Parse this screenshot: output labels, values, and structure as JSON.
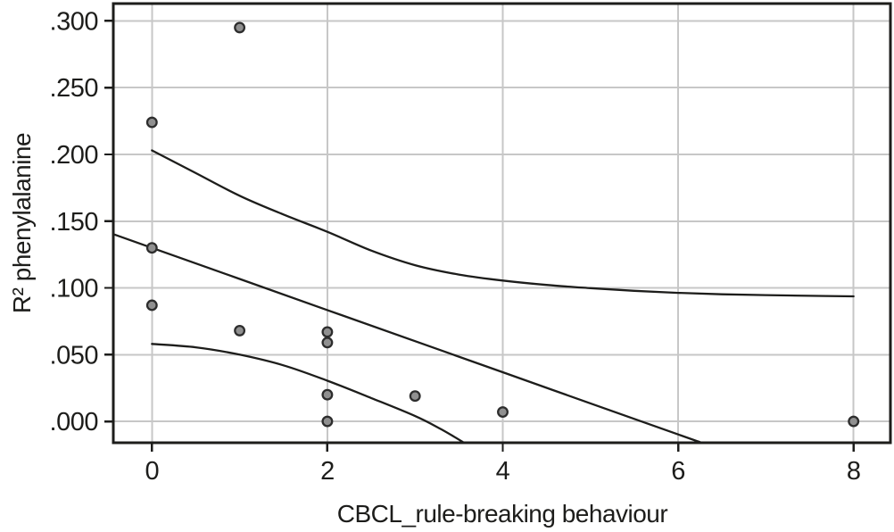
{
  "figure": {
    "background": "#ffffff",
    "frame_color": "#1d1d1b",
    "grid_color": "#c7c7c7",
    "curve_color": "#1d1d1b",
    "point_fill": "#909090",
    "point_stroke": "#2d2d2d",
    "text_color": "#1d1d1b"
  },
  "chart_data": {
    "type": "scatter",
    "title": "",
    "xlabel": "CBCL_rule-breaking behaviour",
    "ylabel": "R² phenylalanine",
    "grid": true,
    "legend": "none",
    "xlim": [
      -0.44,
      8.42
    ],
    "ylim": [
      -0.016,
      0.313
    ],
    "x_tick_values": [
      0,
      2,
      4,
      6,
      8
    ],
    "x_tick_labels": [
      "0",
      "2",
      "4",
      "6",
      "8"
    ],
    "y_tick_values": [
      0.0,
      0.05,
      0.1,
      0.15,
      0.2,
      0.25,
      0.3
    ],
    "y_tick_labels": [
      ".000",
      ".050",
      ".100",
      ".150",
      ".200",
      ".250",
      ".300"
    ],
    "points": [
      [
        0,
        0.224
      ],
      [
        0,
        0.13
      ],
      [
        0,
        0.087
      ],
      [
        1,
        0.295
      ],
      [
        1,
        0.068
      ],
      [
        2,
        0.067
      ],
      [
        2,
        0.059
      ],
      [
        2,
        0.02
      ],
      [
        2,
        0.0
      ],
      [
        3,
        0.019
      ],
      [
        4,
        0.007
      ],
      [
        8,
        0.0
      ]
    ],
    "series": [
      {
        "name": "fit_line",
        "x": [
          -0.44,
          0,
          1,
          2,
          3,
          4,
          5,
          6,
          6.27
        ],
        "y": [
          0.1403,
          0.13,
          0.1067,
          0.0834,
          0.0601,
          0.0368,
          0.0135,
          -0.0098,
          -0.016
        ]
      },
      {
        "name": "ci_upper",
        "x": [
          0,
          0.5,
          1,
          1.5,
          2,
          2.5,
          3,
          3.5,
          4,
          4.5,
          5,
          5.5,
          6,
          6.5,
          7,
          7.5,
          8
        ],
        "y": [
          0.203,
          0.186,
          0.169,
          0.155,
          0.142,
          0.128,
          0.117,
          0.11,
          0.1055,
          0.1022,
          0.0998,
          0.0978,
          0.0963,
          0.0952,
          0.0946,
          0.0941,
          0.0937
        ]
      },
      {
        "name": "ci_lower",
        "x": [
          0,
          0.5,
          1,
          1.5,
          2,
          2.5,
          3,
          3.3,
          3.56
        ],
        "y": [
          0.058,
          0.0555,
          0.05,
          0.042,
          0.0305,
          0.0175,
          0.004,
          -0.006,
          -0.016
        ]
      }
    ]
  }
}
